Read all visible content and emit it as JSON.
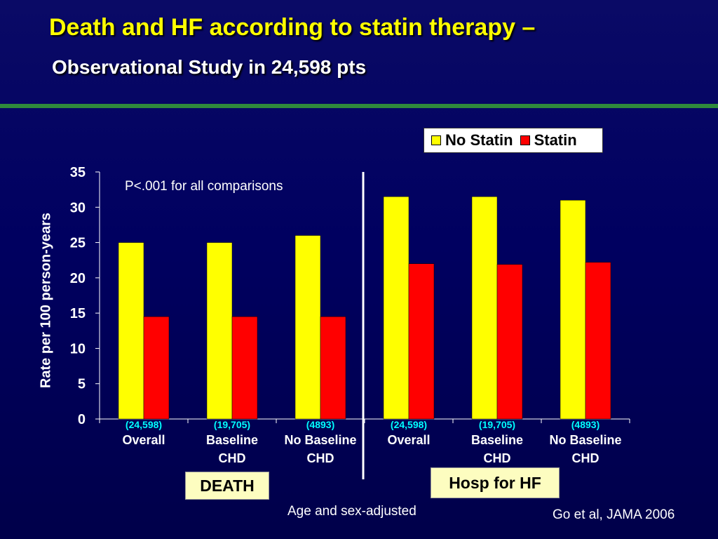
{
  "slide": {
    "title": "Death and HF according to statin therapy –",
    "subtitle": "Observational Study in 24,598 pts",
    "note_adjusted": "Age and sex-adjusted",
    "citation": "Go et al, JAMA 2006",
    "group_labels": [
      "DEATH",
      "Hosp for HF"
    ]
  },
  "colors": {
    "no_statin": "#ffff00",
    "statin": "#ff0000",
    "title": "#ffff00",
    "annotation": "#00ffff",
    "rule": "#2f8a3c"
  },
  "chart_data": {
    "type": "bar",
    "ylabel": "Rate per 100 person-years",
    "ylim": [
      0,
      35
    ],
    "yticks": [
      0,
      5,
      10,
      15,
      20,
      25,
      30,
      35
    ],
    "annotation": "P<.001 for all comparisons",
    "legend_position": "top-right",
    "categories": [
      {
        "n": "(24,598)",
        "label": [
          "Overall"
        ]
      },
      {
        "n": "(19,705)",
        "label": [
          "Baseline",
          "CHD"
        ]
      },
      {
        "n": "(4893)",
        "label": [
          "No Baseline",
          "CHD"
        ]
      },
      {
        "n": "(24,598)",
        "label": [
          "Overall"
        ]
      },
      {
        "n": "(19,705)",
        "label": [
          "Baseline",
          "CHD"
        ]
      },
      {
        "n": "(4893)",
        "label": [
          "No Baseline",
          "CHD"
        ]
      }
    ],
    "series": [
      {
        "name": "No Statin",
        "values": [
          25,
          25,
          26,
          31.5,
          31.5,
          31
        ]
      },
      {
        "name": "Statin",
        "values": [
          14.5,
          14.5,
          14.5,
          22,
          21.9,
          22.2
        ]
      }
    ],
    "groups": [
      "DEATH",
      "Hosp for HF"
    ]
  }
}
